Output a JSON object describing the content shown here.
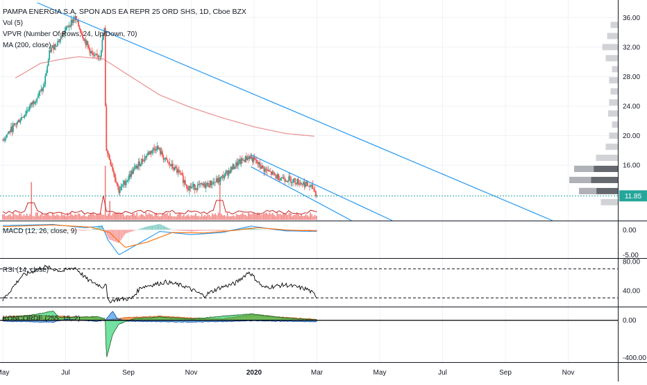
{
  "header": {
    "symbol_title": "PAMPA ENERGIA S.A. SPON ADS EA REPR 25 ORD SHS, 1D, Cboe BZX",
    "indicators": [
      "Vol (5)",
      "VPVR (Number Of Rows, 24, Up/Down, 70)",
      "MA (200, close)"
    ]
  },
  "colors": {
    "up": "#26a69a",
    "down": "#ef5350",
    "ma200": "#e57373",
    "trendline": "#2196f3",
    "macd": "#2196f3",
    "signal": "#ff6d00",
    "rsi": "#000000",
    "price_tag_bg": "#26a69a",
    "price_line": "#26a69a",
    "volume": "#ef5350",
    "konc_green": "#00c853",
    "konc_blue": "#1e88e5",
    "konc_brown": "#c8601e",
    "konc_area": "#f4a460",
    "grid": "#eef1f6"
  },
  "chart_data": [
    {
      "type": "candlestick",
      "title": "PAMPA ENERGIA S.A. SPON ADS EA REPR 25 ORD SHS, 1D, Cboe BZX",
      "x_months": [
        "May",
        "Jul",
        "Sep",
        "Nov",
        "2020",
        "Mar",
        "May",
        "Jul",
        "Sep",
        "Nov"
      ],
      "ylim": [
        8.5,
        38.0
      ],
      "y_ticks": [
        "36.00",
        "32.00",
        "28.00",
        "24.00",
        "20.00",
        "16.00"
      ],
      "last_price": 11.85,
      "last_price_label": "11.85",
      "price_anchors": [
        {
          "m": 0.0,
          "p": 19.5
        },
        {
          "m": 0.35,
          "p": 23.0
        },
        {
          "m": 0.65,
          "p": 26.5
        },
        {
          "m": 0.75,
          "p": 31.5
        },
        {
          "m": 0.9,
          "p": 33.0
        },
        {
          "m": 1.05,
          "p": 35.0
        },
        {
          "m": 1.15,
          "p": 36.0
        },
        {
          "m": 1.3,
          "p": 33.0
        },
        {
          "m": 1.45,
          "p": 30.5
        },
        {
          "m": 1.55,
          "p": 31.0
        },
        {
          "m": 1.62,
          "p": 34.5
        },
        {
          "m": 1.64,
          "p": 18.5
        },
        {
          "m": 1.75,
          "p": 15.5
        },
        {
          "m": 1.85,
          "p": 12.5
        },
        {
          "m": 2.05,
          "p": 15.0
        },
        {
          "m": 2.3,
          "p": 17.5
        },
        {
          "m": 2.45,
          "p": 18.5
        },
        {
          "m": 2.6,
          "p": 16.5
        },
        {
          "m": 2.8,
          "p": 15.0
        },
        {
          "m": 2.95,
          "p": 13.0
        },
        {
          "m": 3.2,
          "p": 13.2
        },
        {
          "m": 3.45,
          "p": 14.0
        },
        {
          "m": 3.7,
          "p": 16.0
        },
        {
          "m": 3.92,
          "p": 17.2
        },
        {
          "m": 4.15,
          "p": 15.5
        },
        {
          "m": 4.35,
          "p": 14.5
        },
        {
          "m": 4.6,
          "p": 14.0
        },
        {
          "m": 4.8,
          "p": 13.5
        },
        {
          "m": 4.95,
          "p": 12.8
        },
        {
          "m": 5.0,
          "p": 11.85
        }
      ],
      "ma200_anchors": [
        {
          "m": 0.2,
          "p": 27.8
        },
        {
          "m": 0.6,
          "p": 29.8
        },
        {
          "m": 0.9,
          "p": 30.3
        },
        {
          "m": 1.2,
          "p": 30.7
        },
        {
          "m": 1.6,
          "p": 30.4
        },
        {
          "m": 2.0,
          "p": 28.2
        },
        {
          "m": 2.5,
          "p": 25.5
        },
        {
          "m": 3.0,
          "p": 23.8
        },
        {
          "m": 3.5,
          "p": 22.4
        },
        {
          "m": 4.0,
          "p": 21.2
        },
        {
          "m": 4.5,
          "p": 20.3
        },
        {
          "m": 5.0,
          "p": 19.9
        }
      ],
      "trendlines": [
        {
          "from": {
            "m": 0.55,
            "p": 38.0
          },
          "to": {
            "m": 8.75,
            "p": 8.5
          }
        },
        {
          "from": {
            "m": 3.95,
            "p": 17.4
          },
          "to": {
            "m": 6.2,
            "p": 8.5
          }
        },
        {
          "from": {
            "m": 3.95,
            "p": 15.8
          },
          "to": {
            "m": 5.55,
            "p": 8.5
          }
        }
      ],
      "volume_spikes": [
        {
          "m": 0.45,
          "v": 0.7
        },
        {
          "m": 1.64,
          "v": 1.0
        },
        {
          "m": 1.7,
          "v": 0.35
        },
        {
          "m": 3.45,
          "v": 0.8
        }
      ],
      "vpvr_profile": [
        {
          "p": 35.0,
          "v": 0.15
        },
        {
          "p": 33.5,
          "v": 0.22
        },
        {
          "p": 32.0,
          "v": 0.32
        },
        {
          "p": 30.5,
          "v": 0.25
        },
        {
          "p": 29.0,
          "v": 0.12
        },
        {
          "p": 27.5,
          "v": 0.18
        },
        {
          "p": 26.0,
          "v": 0.15
        },
        {
          "p": 24.5,
          "v": 0.18
        },
        {
          "p": 23.0,
          "v": 0.2
        },
        {
          "p": 21.5,
          "v": 0.12
        },
        {
          "p": 20.0,
          "v": 0.18
        },
        {
          "p": 18.5,
          "v": 0.25
        },
        {
          "p": 17.0,
          "v": 0.45
        },
        {
          "p": 15.5,
          "v": 0.9
        },
        {
          "p": 14.0,
          "v": 1.0
        },
        {
          "p": 12.5,
          "v": 0.8
        },
        {
          "p": 11.0,
          "v": 0.35
        }
      ]
    },
    {
      "type": "line",
      "title": "MACD (12, 26, close, 9)",
      "ylim": [
        -5.3,
        1.6
      ],
      "y_ticks": [
        "0.00",
        "-5.00"
      ],
      "macd_anchors": [
        {
          "m": 0.0,
          "v": 0.8
        },
        {
          "m": 0.8,
          "v": 1.0
        },
        {
          "m": 1.3,
          "v": 0.4
        },
        {
          "m": 1.58,
          "v": 0.7
        },
        {
          "m": 1.68,
          "v": -2.0
        },
        {
          "m": 1.85,
          "v": -4.7
        },
        {
          "m": 2.1,
          "v": -3.0
        },
        {
          "m": 2.5,
          "v": -0.3
        },
        {
          "m": 3.0,
          "v": -0.9
        },
        {
          "m": 3.5,
          "v": -0.5
        },
        {
          "m": 3.95,
          "v": 0.7
        },
        {
          "m": 4.5,
          "v": -0.2
        },
        {
          "m": 5.0,
          "v": -0.3
        }
      ],
      "signal_anchors": [
        {
          "m": 0.0,
          "v": 0.6
        },
        {
          "m": 0.8,
          "v": 0.9
        },
        {
          "m": 1.4,
          "v": 0.5
        },
        {
          "m": 1.7,
          "v": -0.5
        },
        {
          "m": 1.95,
          "v": -3.3
        },
        {
          "m": 2.3,
          "v": -2.3
        },
        {
          "m": 2.7,
          "v": -0.5
        },
        {
          "m": 3.2,
          "v": -0.6
        },
        {
          "m": 3.7,
          "v": -0.1
        },
        {
          "m": 4.05,
          "v": 0.4
        },
        {
          "m": 4.6,
          "v": -0.1
        },
        {
          "m": 5.0,
          "v": -0.2
        }
      ]
    },
    {
      "type": "line",
      "title": "RSI (14, close)",
      "ylim": [
        18,
        84
      ],
      "y_ticks": [
        "80.00",
        "40.00"
      ],
      "bands": [
        70,
        30
      ],
      "rsi_anchors": [
        {
          "m": 0.0,
          "v": 27
        },
        {
          "m": 0.3,
          "v": 60
        },
        {
          "m": 0.65,
          "v": 73
        },
        {
          "m": 0.95,
          "v": 67
        },
        {
          "m": 1.15,
          "v": 72
        },
        {
          "m": 1.35,
          "v": 55
        },
        {
          "m": 1.6,
          "v": 45
        },
        {
          "m": 1.64,
          "v": 53
        },
        {
          "m": 1.67,
          "v": 25
        },
        {
          "m": 1.8,
          "v": 28
        },
        {
          "m": 2.05,
          "v": 29
        },
        {
          "m": 2.2,
          "v": 45
        },
        {
          "m": 2.6,
          "v": 52
        },
        {
          "m": 2.9,
          "v": 46
        },
        {
          "m": 3.2,
          "v": 33
        },
        {
          "m": 3.45,
          "v": 44
        },
        {
          "m": 3.7,
          "v": 50
        },
        {
          "m": 3.92,
          "v": 66
        },
        {
          "m": 4.15,
          "v": 44
        },
        {
          "m": 4.5,
          "v": 48
        },
        {
          "m": 4.85,
          "v": 42
        },
        {
          "m": 5.0,
          "v": 32
        }
      ]
    },
    {
      "type": "area",
      "title": "KONCORDE (255, 15, 2)",
      "ylim": [
        -450,
        140
      ],
      "y_ticks": [
        "0.00",
        "-400.00"
      ],
      "brown_anchors": [
        {
          "m": 0.0,
          "v": 35
        },
        {
          "m": 0.5,
          "v": 55
        },
        {
          "m": 1.0,
          "v": 40
        },
        {
          "m": 1.5,
          "v": 30
        },
        {
          "m": 1.64,
          "v": 5
        },
        {
          "m": 2.0,
          "v": 30
        },
        {
          "m": 2.5,
          "v": 45
        },
        {
          "m": 3.0,
          "v": 25
        },
        {
          "m": 3.5,
          "v": 15
        },
        {
          "m": 3.95,
          "v": 60
        },
        {
          "m": 4.5,
          "v": 30
        },
        {
          "m": 5.0,
          "v": 10
        }
      ],
      "green_anchors": [
        {
          "m": 0.0,
          "v": 25
        },
        {
          "m": 0.5,
          "v": 60
        },
        {
          "m": 0.8,
          "v": 100
        },
        {
          "m": 0.9,
          "v": 30
        },
        {
          "m": 1.5,
          "v": 40
        },
        {
          "m": 1.63,
          "v": 20
        },
        {
          "m": 1.65,
          "v": -410
        },
        {
          "m": 1.75,
          "v": -150
        },
        {
          "m": 1.85,
          "v": -40
        },
        {
          "m": 2.1,
          "v": 20
        },
        {
          "m": 2.5,
          "v": 35
        },
        {
          "m": 3.0,
          "v": 15
        },
        {
          "m": 3.95,
          "v": 70
        },
        {
          "m": 4.5,
          "v": 25
        },
        {
          "m": 5.0,
          "v": 5
        }
      ],
      "blue_anchors": [
        {
          "m": 0.0,
          "v": -10
        },
        {
          "m": 0.8,
          "v": -20
        },
        {
          "m": 1.0,
          "v": 10
        },
        {
          "m": 1.5,
          "v": -10
        },
        {
          "m": 1.63,
          "v": 0
        },
        {
          "m": 1.75,
          "v": 100
        },
        {
          "m": 1.82,
          "v": 20
        },
        {
          "m": 2.0,
          "v": -10
        },
        {
          "m": 3.0,
          "v": -20
        },
        {
          "m": 4.0,
          "v": -5
        },
        {
          "m": 5.0,
          "v": -15
        }
      ]
    }
  ]
}
